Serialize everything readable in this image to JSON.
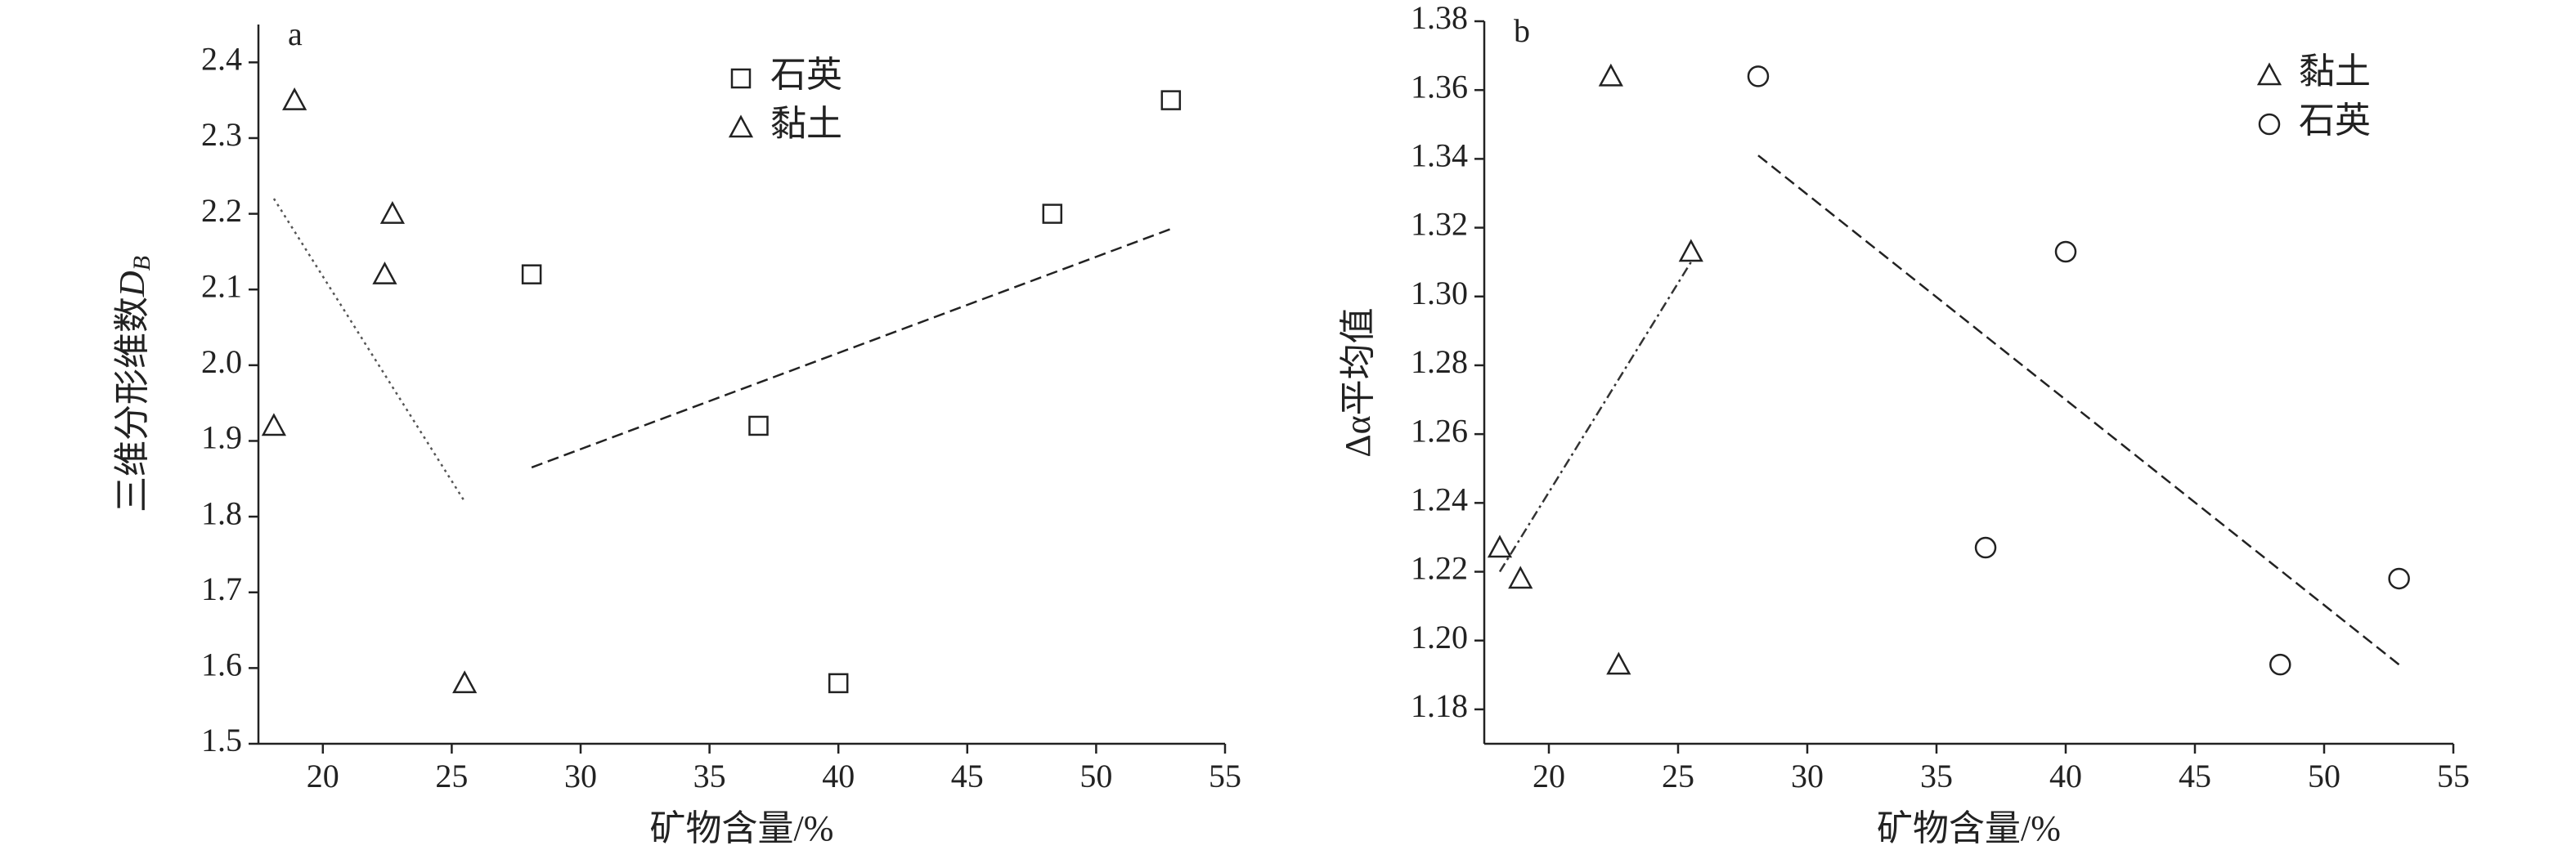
{
  "chart_data": [
    {
      "type": "scatter",
      "panel_label": "a",
      "x_label": "矿物含量/%",
      "y_label": "三维分形维数",
      "y_label_symbol": "D",
      "y_label_subscript": "B",
      "xlim": [
        17.5,
        55
      ],
      "xticks": [
        20,
        25,
        30,
        35,
        40,
        45,
        50,
        55
      ],
      "ylim": [
        1.5,
        2.45
      ],
      "yticks": [
        1.5,
        1.6,
        1.7,
        1.8,
        1.9,
        {
          "value": 2,
          "label": "2.0"
        },
        2.1,
        2.2,
        2.3,
        2.4
      ],
      "legend": "upper right",
      "series": [
        {
          "name": "石英",
          "marker": "square",
          "color": "#222222",
          "x": [
            28.1,
            36.9,
            40,
            48.3,
            52.9
          ],
          "values": [
            2.12,
            1.92,
            1.58,
            2.2,
            2.35
          ]
        },
        {
          "name": "黏土",
          "marker": "triangle",
          "color": "#222222",
          "x": [
            18.1,
            18.9,
            22.4,
            22.7,
            25.5
          ],
          "values": [
            1.92,
            2.35,
            2.12,
            2.2,
            1.58
          ]
        },
        {
          "line": "dotted",
          "color": "#555555",
          "x": [
            18.1,
            25.5
          ],
          "values": [
            2.22,
            1.82
          ]
        },
        {
          "line": "dashed",
          "color": "#222222",
          "x": [
            28.1,
            52.9
          ],
          "values": [
            1.865,
            2.18
          ]
        }
      ]
    },
    {
      "type": "scatter",
      "panel_label": "b",
      "x_label": "矿物含量/%",
      "y_label": "Δα平均值",
      "xlim": [
        17.5,
        55
      ],
      "xticks": [
        20,
        25,
        30,
        35,
        40,
        45,
        50,
        55
      ],
      "ylim": [
        1.17,
        1.38
      ],
      "yticks": [
        1.18,
        {
          "value": 1.2,
          "label": "1.20"
        },
        1.22,
        1.24,
        1.26,
        1.28,
        {
          "value": 1.3,
          "label": "1.30"
        },
        1.32,
        1.34,
        1.36,
        1.38
      ],
      "legend": "upper right",
      "series": [
        {
          "name": "黏土",
          "marker": "triangle",
          "color": "#222222",
          "x": [
            18.1,
            18.9,
            22.4,
            22.7,
            25.5
          ],
          "values": [
            1.227,
            1.218,
            1.364,
            1.193,
            1.313
          ]
        },
        {
          "name": "石英",
          "marker": "circle",
          "color": "#222222",
          "x": [
            28.1,
            36.9,
            40,
            48.3,
            52.9
          ],
          "values": [
            1.364,
            1.227,
            1.313,
            1.193,
            1.218
          ]
        },
        {
          "line": "dashdot",
          "color": "#333333",
          "x": [
            18.1,
            25.5
          ],
          "values": [
            1.22,
            1.31
          ]
        },
        {
          "line": "dashed",
          "color": "#222222",
          "x": [
            28.1,
            52.9
          ],
          "values": [
            1.341,
            1.193
          ]
        }
      ]
    }
  ]
}
